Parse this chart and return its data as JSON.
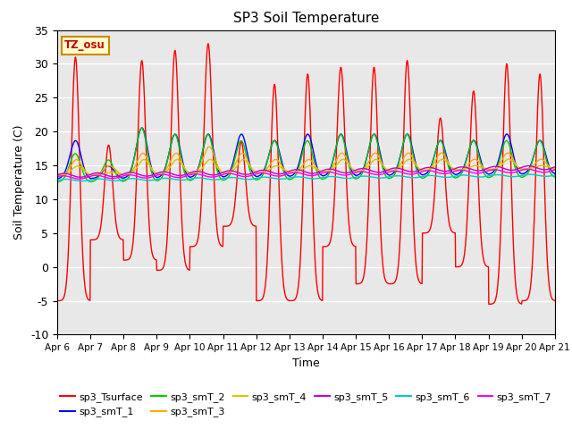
{
  "title": "SP3 Soil Temperature",
  "ylabel": "Soil Temperature (C)",
  "xlabel": "Time",
  "ylim": [
    -10,
    35
  ],
  "annotation": "TZ_osu",
  "series_colors": {
    "sp3_Tsurface": "#ff0000",
    "sp3_smT_1": "#0000ff",
    "sp3_smT_2": "#00cc00",
    "sp3_smT_3": "#ffaa00",
    "sp3_smT_4": "#cccc00",
    "sp3_smT_5": "#cc00cc",
    "sp3_smT_6": "#00cccc",
    "sp3_smT_7": "#ff00ff"
  },
  "xtick_labels": [
    "Apr 6",
    "Apr 7",
    "Apr 8",
    "Apr 9",
    "Apr 10",
    "Apr 11",
    "Apr 12",
    "Apr 13",
    "Apr 14",
    "Apr 15",
    "Apr 16",
    "Apr 17",
    "Apr 18",
    "Apr 19",
    "Apr 20",
    "Apr 21"
  ],
  "ytick_values": [
    -10,
    -5,
    0,
    5,
    10,
    15,
    20,
    25,
    30,
    35
  ],
  "n_days": 15,
  "pts_per_day": 96,
  "surface_peaks": [
    31,
    18,
    30.5,
    32,
    33,
    18.5,
    27,
    28.5,
    29.5,
    29.5,
    30.5,
    22,
    26,
    30,
    28.5
  ],
  "surface_troughs": [
    -5,
    4,
    1,
    -0.5,
    3,
    6,
    -5,
    -5,
    3,
    -2.5,
    -2.5,
    5,
    0,
    -5.5,
    -5
  ],
  "smT1_peaks": [
    19,
    15,
    21,
    20,
    20,
    20,
    19,
    20,
    20,
    20,
    20,
    19,
    19,
    20,
    19
  ],
  "smT2_peaks": [
    17,
    16,
    21,
    20,
    20,
    19,
    19,
    19,
    20,
    20,
    20,
    19,
    19,
    19,
    19
  ],
  "smT3_peaks": [
    16,
    15,
    17,
    17,
    18,
    17,
    16,
    16,
    17,
    17,
    17,
    17,
    16,
    17,
    16
  ],
  "smT4_peaks": [
    15,
    14,
    16,
    16,
    16,
    16,
    15,
    15,
    16,
    16,
    16,
    16,
    15,
    16,
    15
  ],
  "base_smT1": 13.0,
  "base_smT2": 12.5,
  "base_smT3": 13.5,
  "base_smT4": 13.5,
  "base_smT5": 13.5,
  "base_smT6": 12.8,
  "base_smT7": 13.2,
  "slope_smT5": 0.08,
  "slope_smT6": 0.05,
  "slope_smT7": 0.07
}
